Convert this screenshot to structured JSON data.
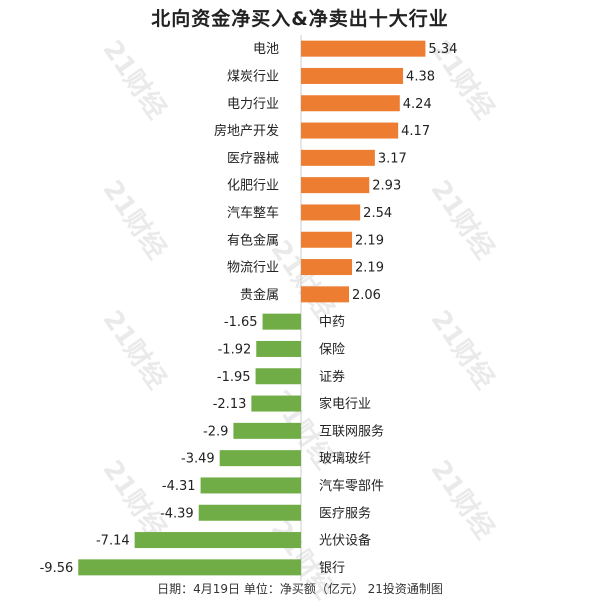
{
  "title": "北向资金净买入&净卖出十大行业",
  "footer": "日期：4月19日 单位：净买额（亿元） 21投资通制图",
  "watermark_text": "21财经",
  "colors": {
    "positive": "#ed7d31",
    "negative": "#70ad47",
    "axis": "#cccccc",
    "text": "#222222"
  },
  "chart_data": {
    "type": "bar",
    "orientation": "horizontal",
    "title": "北向资金净买入&净卖出十大行业",
    "xlabel": "",
    "ylabel": "",
    "grid": false,
    "categories": [
      "电池",
      "煤炭行业",
      "电力行业",
      "房地产开发",
      "医疗器械",
      "化肥行业",
      "汽车整车",
      "有色金属",
      "物流行业",
      "贵金属",
      "中药",
      "保险",
      "证券",
      "家电行业",
      "互联网服务",
      "玻璃玻纤",
      "汽车零部件",
      "医疗服务",
      "光伏设备",
      "银行"
    ],
    "values": [
      5.34,
      4.38,
      4.24,
      4.17,
      3.17,
      2.93,
      2.54,
      2.19,
      2.19,
      2.06,
      -1.65,
      -1.92,
      -1.95,
      -2.13,
      -2.9,
      -3.49,
      -4.31,
      -4.39,
      -7.14,
      -9.56
    ]
  }
}
